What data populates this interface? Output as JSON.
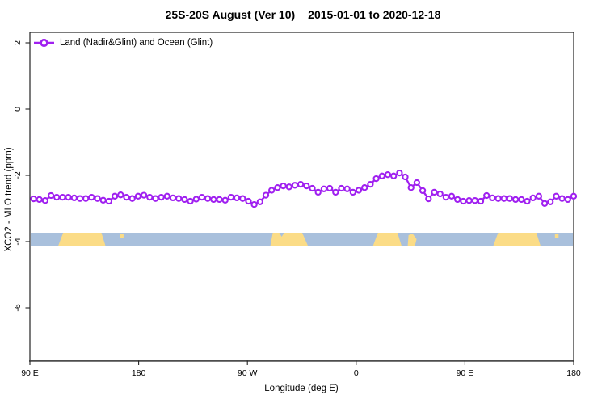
{
  "title": {
    "left": "25S-20S August (Ver 10)",
    "right": "2015-01-01 to 2020-12-18"
  },
  "legend": {
    "label": "Land (Nadir&Glint) and Ocean (Glint)"
  },
  "axes": {
    "x": {
      "label": "Longitude (deg E)",
      "ticks": [
        "90 E",
        "180",
        "90 W",
        "0",
        "90 E",
        "180"
      ]
    },
    "y": {
      "label": "XCO2 - MLO trend (ppm)",
      "ticks": [
        "2",
        "0",
        "-2",
        "-4",
        "-6"
      ]
    }
  },
  "colors": {
    "series": "#A020F0",
    "ocean": "#a9c0dc",
    "land": "#fbdc87",
    "box": "#222222",
    "axis_line": "#4d4d4d",
    "text": "#000000"
  },
  "chart_data": {
    "type": "line",
    "title": "25S-20S August (Ver 10)   2015-01-01 to 2020-12-18",
    "xlabel": "Longitude (deg E)",
    "ylabel": "XCO2 - MLO trend (ppm)",
    "x_axis_deg_range": [
      90,
      540
    ],
    "x_tick_deg": [
      90,
      180,
      270,
      360,
      450,
      540
    ],
    "x_tick_labels": [
      "90 E",
      "180",
      "90 W",
      "0",
      "90 E",
      "180"
    ],
    "y_ticks": [
      2,
      0,
      -2,
      -4,
      -6
    ],
    "ylim": [
      -7.6,
      2.32
    ],
    "grid": false,
    "legend_position": "top-left-inside",
    "series": [
      {
        "name": "Land (Nadir&Glint) and Ocean (Glint)",
        "marker": "open-circle",
        "x_start_deg": 93,
        "x_end_deg": 540,
        "values": [
          -2.71,
          -2.73,
          -2.76,
          -2.61,
          -2.66,
          -2.66,
          -2.66,
          -2.68,
          -2.7,
          -2.7,
          -2.66,
          -2.7,
          -2.75,
          -2.78,
          -2.63,
          -2.59,
          -2.66,
          -2.7,
          -2.63,
          -2.6,
          -2.66,
          -2.7,
          -2.66,
          -2.63,
          -2.68,
          -2.7,
          -2.73,
          -2.78,
          -2.72,
          -2.66,
          -2.7,
          -2.73,
          -2.73,
          -2.75,
          -2.66,
          -2.68,
          -2.7,
          -2.78,
          -2.88,
          -2.8,
          -2.6,
          -2.45,
          -2.37,
          -2.32,
          -2.35,
          -2.3,
          -2.27,
          -2.32,
          -2.39,
          -2.51,
          -2.41,
          -2.39,
          -2.51,
          -2.39,
          -2.41,
          -2.51,
          -2.45,
          -2.37,
          -2.27,
          -2.1,
          -2.02,
          -1.98,
          -2.02,
          -1.93,
          -2.05,
          -2.37,
          -2.22,
          -2.46,
          -2.71,
          -2.51,
          -2.56,
          -2.66,
          -2.63,
          -2.73,
          -2.78,
          -2.76,
          -2.76,
          -2.78,
          -2.61,
          -2.68,
          -2.7,
          -2.7,
          -2.7,
          -2.73,
          -2.73,
          -2.78,
          -2.68,
          -2.63,
          -2.85,
          -2.8,
          -2.63,
          -2.7,
          -2.73,
          -2.63
        ]
      }
    ],
    "map_strip": {
      "description": "coastline strip at latitude band 25S-20S",
      "y_center_ppm": -3.95,
      "land_segments_deg": [
        {
          "name": "australia-west-copy",
          "from": 113.5,
          "to": 152.5
        },
        {
          "name": "new-caledonia-west-copy",
          "from": 164.5,
          "to": 167.5
        },
        {
          "name": "south-america",
          "from": 289,
          "to": 320
        },
        {
          "name": "africa",
          "from": 374,
          "to": 397.5
        },
        {
          "name": "madagascar",
          "from": 402,
          "to": 410
        },
        {
          "name": "australia-east-copy",
          "from": 473.5,
          "to": 512.5
        },
        {
          "name": "new-caledonia-east-copy",
          "from": 524.5,
          "to": 527.5
        }
      ]
    }
  }
}
